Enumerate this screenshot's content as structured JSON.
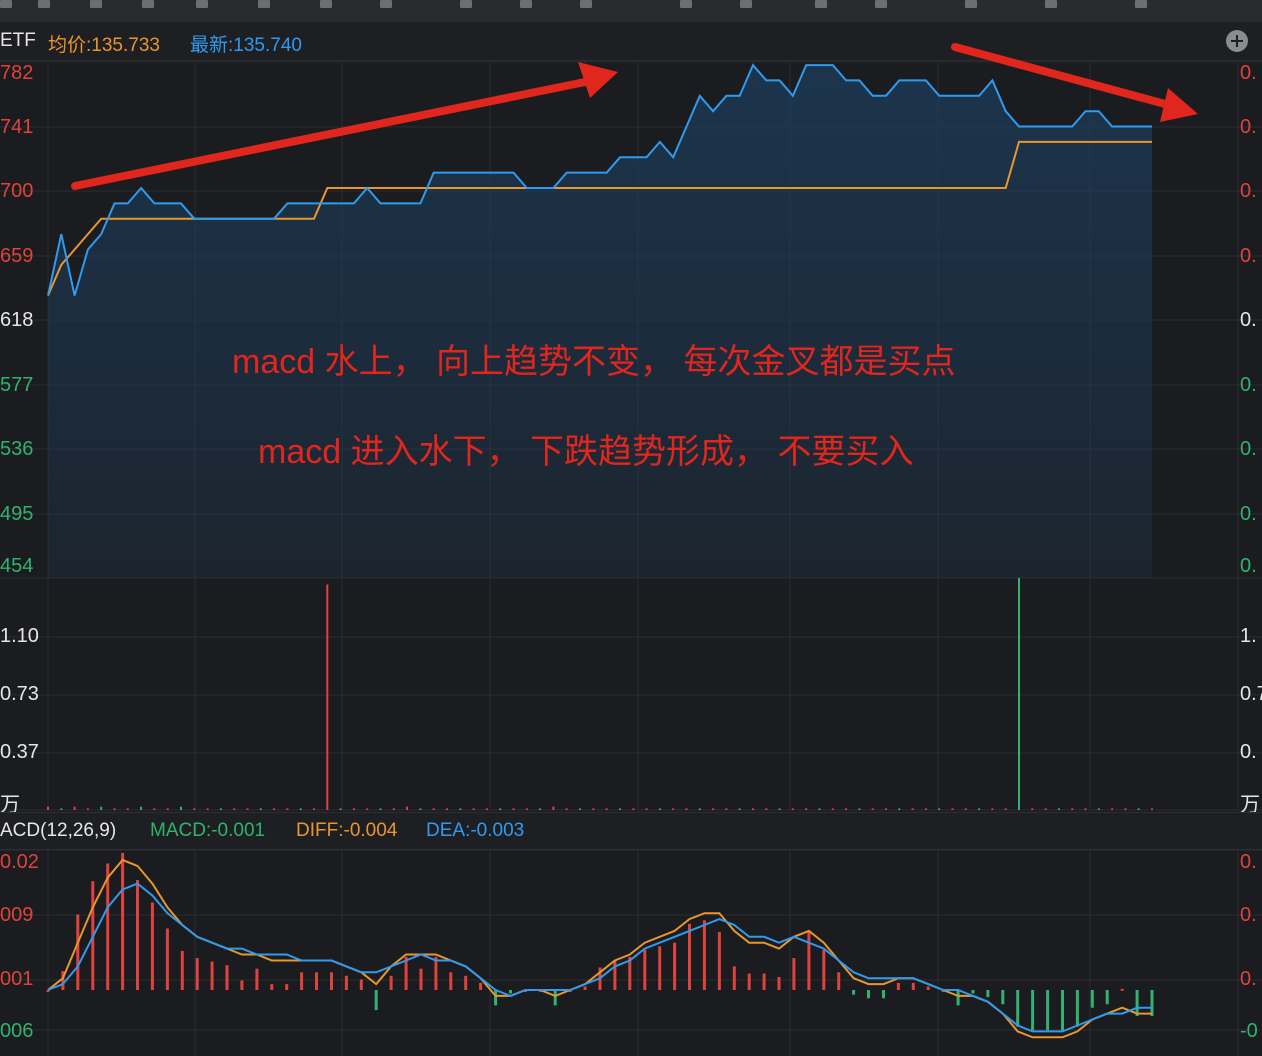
{
  "header": {
    "symbol_fragment": "ETF",
    "avg_price_label": "均价:135.733",
    "latest_price_label": "最新:135.740",
    "add_icon": "plus-circle-icon"
  },
  "price_axis": {
    "left_labels": [
      "782",
      "741",
      "700",
      "659",
      "618",
      "577",
      "536",
      "495",
      "454"
    ],
    "right_labels": [
      "0.",
      "0.",
      "0.",
      "0.",
      "0.",
      "0.",
      "0.",
      "0.",
      "0."
    ]
  },
  "volume_axis": {
    "left_labels": [
      "1.10",
      "0.73",
      "0.37",
      "万"
    ],
    "right_labels": [
      "1.",
      "0.7",
      "0.",
      "万"
    ]
  },
  "macd_header": {
    "title": "ACD(12,26,9)",
    "macd_label": "MACD:-0.001",
    "diff_label": "DIFF:-0.004",
    "dea_label": "DEA:-0.003"
  },
  "macd_axis": {
    "left_labels": [
      "0.02",
      "009",
      "001",
      "006"
    ],
    "right_labels": [
      "0.",
      "0.",
      "0.",
      "-0"
    ]
  },
  "annotations": {
    "line1": "macd 水上，  向上趋势不变，  每次金叉都是买点",
    "line2": "macd 进入水下，  下跌趋势形成，  不要买入"
  },
  "colors": {
    "price_line": "#2f9bf0",
    "avg_line": "#e8962d",
    "up": "#e0423c",
    "down": "#2fb36e",
    "arrow": "#e0261d"
  },
  "chart_data": [
    {
      "type": "line",
      "series": [
        {
          "name": "最新",
          "values": [
            135.63,
            135.67,
            135.63,
            135.66,
            135.67,
            135.69,
            135.69,
            135.7,
            135.69,
            135.69,
            135.69,
            135.68,
            135.68,
            135.68,
            135.68,
            135.68,
            135.68,
            135.68,
            135.69,
            135.69,
            135.69,
            135.69,
            135.69,
            135.69,
            135.7,
            135.69,
            135.69,
            135.69,
            135.69,
            135.71,
            135.71,
            135.71,
            135.71,
            135.71,
            135.71,
            135.71,
            135.7,
            135.7,
            135.7,
            135.71,
            135.71,
            135.71,
            135.71,
            135.72,
            135.72,
            135.72,
            135.73,
            135.72,
            135.74,
            135.76,
            135.75,
            135.76,
            135.76,
            135.78,
            135.77,
            135.77,
            135.76,
            135.78,
            135.78,
            135.78,
            135.77,
            135.77,
            135.76,
            135.76,
            135.77,
            135.77,
            135.77,
            135.76,
            135.76,
            135.76,
            135.76,
            135.77,
            135.75,
            135.74,
            135.74,
            135.74,
            135.74,
            135.74,
            135.75,
            135.75,
            135.74,
            135.74,
            135.74,
            135.74
          ]
        },
        {
          "name": "均价",
          "values": [
            135.63,
            135.65,
            135.66,
            135.67,
            135.68,
            135.68,
            135.68,
            135.68,
            135.68,
            135.68,
            135.68,
            135.68,
            135.68,
            135.68,
            135.68,
            135.68,
            135.68,
            135.68,
            135.68,
            135.68,
            135.68,
            135.7,
            135.7,
            135.7,
            135.7,
            135.7,
            135.7,
            135.7,
            135.7,
            135.7,
            135.7,
            135.7,
            135.7,
            135.7,
            135.7,
            135.7,
            135.7,
            135.7,
            135.7,
            135.7,
            135.7,
            135.7,
            135.7,
            135.7,
            135.7,
            135.7,
            135.7,
            135.7,
            135.7,
            135.7,
            135.7,
            135.7,
            135.7,
            135.7,
            135.7,
            135.7,
            135.7,
            135.7,
            135.7,
            135.7,
            135.7,
            135.7,
            135.7,
            135.7,
            135.7,
            135.7,
            135.7,
            135.7,
            135.7,
            135.7,
            135.7,
            135.7,
            135.7,
            135.73,
            135.73,
            135.73,
            135.73,
            135.73,
            135.73,
            135.73,
            135.73,
            135.73,
            135.73,
            135.73
          ]
        }
      ]
    },
    {
      "type": "bar",
      "series": [
        {
          "values": [
            0.02,
            0.01,
            0.02,
            0.01,
            0.02,
            0.01,
            0.01,
            0.02,
            0.01,
            0.01,
            0.02,
            0.01,
            0.01,
            0.01,
            0.01,
            0.01,
            0.01,
            0.01,
            0.01,
            0.01,
            0.01,
            1.38,
            0.01,
            0.01,
            0.01,
            0.01,
            0.01,
            0.02,
            0.01,
            0.01,
            0.01,
            0.01,
            0.01,
            0.01,
            0.01,
            0.01,
            0.01,
            0.01,
            0.02,
            0.01,
            0.01,
            0.01,
            0.01,
            0.01,
            0.01,
            0.01,
            0.01,
            0.01,
            0.01,
            0.01,
            0.01,
            0.01,
            0.01,
            0.01,
            0.01,
            0.01,
            0.01,
            0.01,
            0.01,
            0.01,
            0.01,
            0.01,
            0.01,
            0.01,
            0.01,
            0.01,
            0.01,
            0.01,
            0.01,
            0.01,
            0.01,
            0.01,
            0.01,
            1.42,
            0.01,
            0.01,
            0.01,
            0.01,
            0.01,
            0.01,
            0.01,
            0.01,
            0.01,
            0.01
          ]
        }
      ]
    },
    {
      "type": "line",
      "series": [
        {
          "name": "DIFF",
          "values": [
            0.0,
            0.002,
            0.008,
            0.014,
            0.019,
            0.022,
            0.021,
            0.018,
            0.014,
            0.011,
            0.009,
            0.008,
            0.007,
            0.006,
            0.006,
            0.005,
            0.005,
            0.005,
            0.005,
            0.005,
            0.004,
            0.003,
            0.001,
            0.004,
            0.006,
            0.006,
            0.006,
            0.005,
            0.004,
            0.002,
            -0.001,
            -0.001,
            0.0,
            0.0,
            -0.001,
            0.0,
            0.001,
            0.003,
            0.005,
            0.006,
            0.008,
            0.009,
            0.01,
            0.012,
            0.013,
            0.013,
            0.01,
            0.008,
            0.008,
            0.007,
            0.009,
            0.01,
            0.008,
            0.005,
            0.002,
            0.001,
            0.001,
            0.002,
            0.002,
            0.001,
            0.0,
            -0.001,
            -0.001,
            -0.002,
            -0.004,
            -0.007,
            -0.008,
            -0.008,
            -0.008,
            -0.007,
            -0.005,
            -0.004,
            -0.003,
            -0.004,
            -0.004
          ]
        },
        {
          "name": "DEA",
          "values": [
            0.0,
            0.001,
            0.004,
            0.009,
            0.014,
            0.017,
            0.018,
            0.016,
            0.013,
            0.011,
            0.009,
            0.008,
            0.007,
            0.007,
            0.006,
            0.006,
            0.006,
            0.005,
            0.005,
            0.005,
            0.004,
            0.003,
            0.003,
            0.004,
            0.005,
            0.006,
            0.005,
            0.005,
            0.004,
            0.002,
            0.0,
            -0.001,
            0.0,
            0.0,
            0.0,
            0.0,
            0.001,
            0.002,
            0.004,
            0.005,
            0.007,
            0.008,
            0.009,
            0.01,
            0.011,
            0.012,
            0.011,
            0.009,
            0.009,
            0.008,
            0.009,
            0.008,
            0.007,
            0.005,
            0.003,
            0.002,
            0.002,
            0.002,
            0.002,
            0.001,
            0.0,
            0.0,
            -0.001,
            -0.002,
            -0.004,
            -0.006,
            -0.007,
            -0.007,
            -0.007,
            -0.006,
            -0.005,
            -0.004,
            -0.004,
            -0.003,
            -0.003
          ]
        }
      ]
    }
  ]
}
